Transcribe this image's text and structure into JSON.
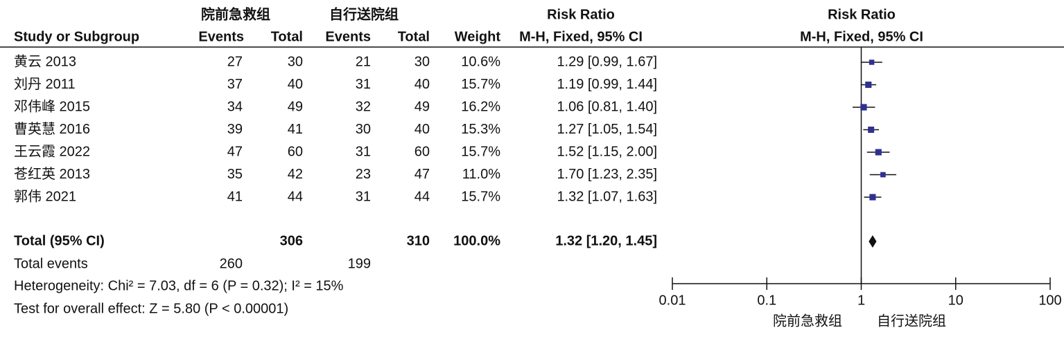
{
  "chart_data": {
    "type": "forest",
    "group_labels": [
      "院前急救组",
      "自行送院组"
    ],
    "table_title": "Risk Ratio",
    "columns": [
      "Study or Subgroup",
      "Events",
      "Total",
      "Events",
      "Total",
      "Weight",
      "M-H, Fixed, 95% CI"
    ],
    "plot_title": "Risk Ratio",
    "plot_subtitle": "M-H, Fixed, 95% CI",
    "studies": [
      {
        "name": "黄云 2013",
        "events1": 27,
        "total1": 30,
        "events2": 21,
        "total2": 30,
        "weight": 10.6,
        "weight_label": "10.6%",
        "rr": 1.29,
        "lower": 0.99,
        "upper": 1.67,
        "ci_label": "1.29 [0.99, 1.67]"
      },
      {
        "name": "刘丹 2011",
        "events1": 37,
        "total1": 40,
        "events2": 31,
        "total2": 40,
        "weight": 15.7,
        "weight_label": "15.7%",
        "rr": 1.19,
        "lower": 0.99,
        "upper": 1.44,
        "ci_label": "1.19 [0.99, 1.44]"
      },
      {
        "name": "邓伟峰 2015",
        "events1": 34,
        "total1": 49,
        "events2": 32,
        "total2": 49,
        "weight": 16.2,
        "weight_label": "16.2%",
        "rr": 1.06,
        "lower": 0.81,
        "upper": 1.4,
        "ci_label": "1.06 [0.81, 1.40]"
      },
      {
        "name": "曹英慧 2016",
        "events1": 39,
        "total1": 41,
        "events2": 30,
        "total2": 40,
        "weight": 15.3,
        "weight_label": "15.3%",
        "rr": 1.27,
        "lower": 1.05,
        "upper": 1.54,
        "ci_label": "1.27 [1.05, 1.54]"
      },
      {
        "name": "王云霞 2022",
        "events1": 47,
        "total1": 60,
        "events2": 31,
        "total2": 60,
        "weight": 15.7,
        "weight_label": "15.7%",
        "rr": 1.52,
        "lower": 1.15,
        "upper": 2.0,
        "ci_label": "1.52 [1.15, 2.00]"
      },
      {
        "name": "苍红英 2013",
        "events1": 35,
        "total1": 42,
        "events2": 23,
        "total2": 47,
        "weight": 11.0,
        "weight_label": "11.0%",
        "rr": 1.7,
        "lower": 1.23,
        "upper": 2.35,
        "ci_label": "1.70 [1.23, 2.35]"
      },
      {
        "name": "郭伟 2021",
        "events1": 41,
        "total1": 44,
        "events2": 31,
        "total2": 44,
        "weight": 15.7,
        "weight_label": "15.7%",
        "rr": 1.32,
        "lower": 1.07,
        "upper": 1.63,
        "ci_label": "1.32 [1.07, 1.63]"
      }
    ],
    "total": {
      "name": "Total (95% CI)",
      "total1": 306,
      "total2": 310,
      "weight": 100.0,
      "weight_label": "100.0%",
      "rr": 1.32,
      "lower": 1.2,
      "upper": 1.45,
      "ci_label": "1.32 [1.20, 1.45]"
    },
    "total_events": {
      "name": "Total events",
      "events1": 260,
      "events2": 199
    },
    "heterogeneity": "Heterogeneity: Chi² = 7.03, df = 6 (P = 0.32); I² = 15%",
    "overall_effect": "Test for overall effect: Z = 5.80 (P < 0.00001)",
    "log_scale": true,
    "xlim": [
      0.01,
      100
    ],
    "xticks": [
      0.01,
      0.1,
      1,
      10,
      100
    ],
    "color": "#2e3192"
  }
}
